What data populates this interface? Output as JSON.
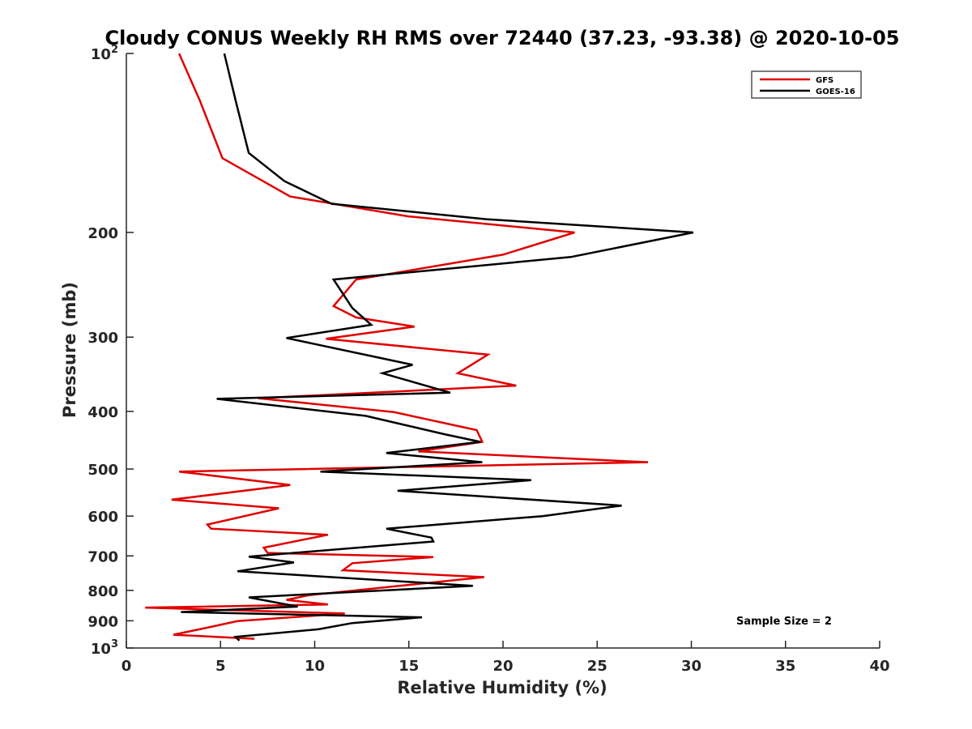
{
  "chart_data": {
    "type": "line",
    "title": "Cloudy CONUS Weekly RH RMS over 72440 (37.23, -93.38) @ 2020-10-05",
    "xlabel": "Relative Humidity (%)",
    "ylabel": "Pressure (mb)",
    "xlim": [
      0,
      40
    ],
    "ylim": [
      100,
      1000
    ],
    "y_scale": "log",
    "y_reversed": true,
    "grid": false,
    "legend_position": "top-right",
    "x_ticks": [
      0,
      5,
      10,
      15,
      20,
      25,
      30,
      35,
      40
    ],
    "y_ticks": [
      {
        "value": 100,
        "label": "10",
        "sup": "2"
      },
      {
        "value": 200,
        "label": "200",
        "sup": ""
      },
      {
        "value": 300,
        "label": "300",
        "sup": ""
      },
      {
        "value": 400,
        "label": "400",
        "sup": ""
      },
      {
        "value": 500,
        "label": "500",
        "sup": ""
      },
      {
        "value": 600,
        "label": "600",
        "sup": ""
      },
      {
        "value": 700,
        "label": "700",
        "sup": ""
      },
      {
        "value": 800,
        "label": "800",
        "sup": ""
      },
      {
        "value": 900,
        "label": "900",
        "sup": ""
      },
      {
        "value": 1000,
        "label": "10",
        "sup": "3"
      }
    ],
    "annotation": "Sample Size = 2",
    "series": [
      {
        "name": "GFS",
        "color": "#e00000",
        "points": [
          [
            2.8,
            100
          ],
          [
            3.9,
            120
          ],
          [
            5.1,
            150
          ],
          [
            8.7,
            174
          ],
          [
            15.0,
            188
          ],
          [
            23.8,
            200
          ],
          [
            20.0,
            218
          ],
          [
            12.2,
            240
          ],
          [
            11.0,
            266
          ],
          [
            12.2,
            278
          ],
          [
            15.3,
            288
          ],
          [
            10.6,
            302
          ],
          [
            19.2,
            321
          ],
          [
            17.6,
            345
          ],
          [
            20.7,
            362
          ],
          [
            7.0,
            380
          ],
          [
            14.2,
            401
          ],
          [
            18.6,
            430
          ],
          [
            18.9,
            450
          ],
          [
            15.5,
            467
          ],
          [
            27.7,
            487
          ],
          [
            2.8,
            505
          ],
          [
            8.7,
            532
          ],
          [
            2.4,
            563
          ],
          [
            8.1,
            582
          ],
          [
            4.3,
            620
          ],
          [
            4.5,
            630
          ],
          [
            10.7,
            645
          ],
          [
            7.3,
            678
          ],
          [
            7.5,
            692
          ],
          [
            16.3,
            703
          ],
          [
            12.0,
            720
          ],
          [
            11.5,
            740
          ],
          [
            19.0,
            760
          ],
          [
            9.7,
            815
          ],
          [
            8.5,
            830
          ],
          [
            10.7,
            845
          ],
          [
            1.0,
            855
          ],
          [
            11.6,
            875
          ],
          [
            5.9,
            901
          ],
          [
            4.6,
            920
          ],
          [
            2.5,
            950
          ],
          [
            6.8,
            965
          ]
        ]
      },
      {
        "name": "GOES-16",
        "color": "#000000",
        "points": [
          [
            5.2,
            100
          ],
          [
            5.8,
            120
          ],
          [
            6.5,
            147
          ],
          [
            8.4,
            164
          ],
          [
            10.9,
            179
          ],
          [
            19.1,
            190
          ],
          [
            30.1,
            200
          ],
          [
            23.6,
            220
          ],
          [
            11.0,
            240
          ],
          [
            12.0,
            268
          ],
          [
            13.0,
            286
          ],
          [
            8.5,
            301
          ],
          [
            15.2,
            334
          ],
          [
            13.6,
            345
          ],
          [
            17.2,
            372
          ],
          [
            4.8,
            381
          ],
          [
            12.7,
            407
          ],
          [
            16.9,
            437
          ],
          [
            18.8,
            450
          ],
          [
            13.8,
            470
          ],
          [
            18.9,
            487
          ],
          [
            10.3,
            505
          ],
          [
            21.5,
            522
          ],
          [
            14.4,
            544
          ],
          [
            26.3,
            576
          ],
          [
            22.1,
            600
          ],
          [
            13.8,
            630
          ],
          [
            16.2,
            652
          ],
          [
            16.3,
            662
          ],
          [
            6.5,
            702
          ],
          [
            8.9,
            718
          ],
          [
            5.9,
            743
          ],
          [
            18.4,
            786
          ],
          [
            6.5,
            822
          ],
          [
            9.1,
            852
          ],
          [
            2.9,
            870
          ],
          [
            15.7,
            888
          ],
          [
            12.0,
            908
          ],
          [
            10.2,
            930
          ],
          [
            5.8,
            958
          ],
          [
            6.0,
            972
          ]
        ]
      }
    ]
  }
}
